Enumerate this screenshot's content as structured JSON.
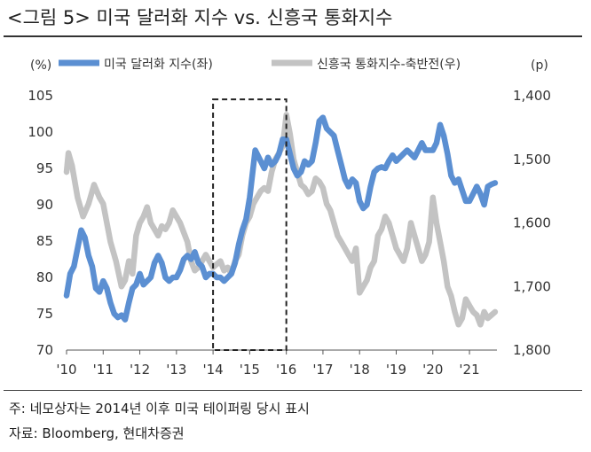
{
  "header": {
    "title": "<그림 5> 미국 달러화 지수 vs. 신흥국 통화지수"
  },
  "footer": {
    "note": "주: 네모상자는 2014년 이후 미국 테이퍼링 당시 표시",
    "source": "자료: Bloomberg, 현대차증권"
  },
  "colors": {
    "dollar_series": "#5b8fd2",
    "em_series": "#c3c3c3",
    "box": "#222222"
  },
  "chart_data": {
    "type": "line",
    "left_unit": "(%)",
    "right_unit": "(p)",
    "x_ticks": [
      "'10",
      "'11",
      "'12",
      "'13",
      "'14",
      "'15",
      "'16",
      "'17",
      "'18",
      "'19",
      "'20",
      "'21"
    ],
    "x_range": [
      2010.0,
      2021.75
    ],
    "y_left": {
      "range": [
        70,
        105
      ],
      "ticks": [
        70,
        75,
        80,
        85,
        90,
        95,
        100,
        105
      ]
    },
    "y_right": {
      "range": [
        1400,
        1800
      ],
      "inverted": true,
      "ticks": [
        "1,400",
        "1,500",
        "1,600",
        "1,700",
        "1,800"
      ]
    },
    "annotation": {
      "type": "dashed-box",
      "x_from": 2014.0,
      "x_to": 2016.0,
      "y_from": 70,
      "y_to": 104.5
    },
    "legend": {
      "placement": "top"
    },
    "series": [
      {
        "name": "미국 달러화 지수(좌)",
        "axis": "left",
        "points": [
          [
            2010.0,
            77.5
          ],
          [
            2010.1,
            80.5
          ],
          [
            2010.2,
            81.5
          ],
          [
            2010.3,
            84.0
          ],
          [
            2010.4,
            86.5
          ],
          [
            2010.5,
            85.5
          ],
          [
            2010.6,
            83.0
          ],
          [
            2010.7,
            81.5
          ],
          [
            2010.8,
            78.5
          ],
          [
            2010.9,
            78.0
          ],
          [
            2011.0,
            79.5
          ],
          [
            2011.1,
            78.5
          ],
          [
            2011.2,
            76.5
          ],
          [
            2011.3,
            75.0
          ],
          [
            2011.4,
            74.5
          ],
          [
            2011.5,
            74.8
          ],
          [
            2011.6,
            74.2
          ],
          [
            2011.7,
            76.5
          ],
          [
            2011.8,
            78.5
          ],
          [
            2011.9,
            79.0
          ],
          [
            2012.0,
            80.5
          ],
          [
            2012.1,
            79.0
          ],
          [
            2012.2,
            79.5
          ],
          [
            2012.3,
            80.0
          ],
          [
            2012.4,
            82.0
          ],
          [
            2012.5,
            83.0
          ],
          [
            2012.6,
            82.0
          ],
          [
            2012.7,
            80.0
          ],
          [
            2012.8,
            79.5
          ],
          [
            2012.9,
            80.0
          ],
          [
            2013.0,
            80.0
          ],
          [
            2013.1,
            81.0
          ],
          [
            2013.2,
            82.5
          ],
          [
            2013.3,
            83.0
          ],
          [
            2013.4,
            82.5
          ],
          [
            2013.5,
            83.5
          ],
          [
            2013.6,
            82.0
          ],
          [
            2013.7,
            81.5
          ],
          [
            2013.8,
            80.0
          ],
          [
            2013.9,
            80.5
          ],
          [
            2014.0,
            80.5
          ],
          [
            2014.1,
            80.0
          ],
          [
            2014.2,
            80.0
          ],
          [
            2014.3,
            79.5
          ],
          [
            2014.4,
            80.0
          ],
          [
            2014.5,
            80.5
          ],
          [
            2014.6,
            82.0
          ],
          [
            2014.7,
            84.5
          ],
          [
            2014.8,
            86.5
          ],
          [
            2014.9,
            88.0
          ],
          [
            2015.0,
            91.0
          ],
          [
            2015.15,
            97.5
          ],
          [
            2015.3,
            96.0
          ],
          [
            2015.4,
            95.0
          ],
          [
            2015.5,
            96.5
          ],
          [
            2015.6,
            95.5
          ],
          [
            2015.7,
            96.0
          ],
          [
            2015.8,
            97.0
          ],
          [
            2015.9,
            99.0
          ],
          [
            2016.0,
            99.0
          ],
          [
            2016.1,
            97.0
          ],
          [
            2016.2,
            95.0
          ],
          [
            2016.3,
            94.0
          ],
          [
            2016.4,
            94.5
          ],
          [
            2016.5,
            96.0
          ],
          [
            2016.6,
            95.5
          ],
          [
            2016.7,
            96.0
          ],
          [
            2016.8,
            98.5
          ],
          [
            2016.9,
            101.5
          ],
          [
            2017.0,
            102.0
          ],
          [
            2017.1,
            100.5
          ],
          [
            2017.2,
            100.0
          ],
          [
            2017.3,
            99.5
          ],
          [
            2017.4,
            97.5
          ],
          [
            2017.5,
            95.5
          ],
          [
            2017.6,
            93.5
          ],
          [
            2017.7,
            92.5
          ],
          [
            2017.8,
            93.5
          ],
          [
            2017.9,
            93.0
          ],
          [
            2018.0,
            90.5
          ],
          [
            2018.1,
            89.5
          ],
          [
            2018.2,
            90.0
          ],
          [
            2018.3,
            92.5
          ],
          [
            2018.4,
            94.5
          ],
          [
            2018.5,
            95.0
          ],
          [
            2018.6,
            95.2
          ],
          [
            2018.7,
            95.0
          ],
          [
            2018.8,
            96.0
          ],
          [
            2018.9,
            96.8
          ],
          [
            2019.0,
            96.0
          ],
          [
            2019.1,
            96.5
          ],
          [
            2019.2,
            97.0
          ],
          [
            2019.3,
            97.5
          ],
          [
            2019.4,
            97.0
          ],
          [
            2019.5,
            96.5
          ],
          [
            2019.6,
            97.5
          ],
          [
            2019.7,
            98.5
          ],
          [
            2019.8,
            97.5
          ],
          [
            2019.9,
            97.5
          ],
          [
            2020.0,
            97.5
          ],
          [
            2020.1,
            98.5
          ],
          [
            2020.2,
            101.0
          ],
          [
            2020.3,
            99.5
          ],
          [
            2020.4,
            97.0
          ],
          [
            2020.5,
            94.0
          ],
          [
            2020.6,
            93.0
          ],
          [
            2020.7,
            93.5
          ],
          [
            2020.8,
            92.0
          ],
          [
            2020.9,
            90.5
          ],
          [
            2021.0,
            90.5
          ],
          [
            2021.1,
            91.5
          ],
          [
            2021.2,
            92.5
          ],
          [
            2021.3,
            91.5
          ],
          [
            2021.4,
            90.0
          ],
          [
            2021.5,
            92.5
          ],
          [
            2021.6,
            92.8
          ],
          [
            2021.7,
            93.0
          ]
        ]
      },
      {
        "name": "신흥국 통화지수-축반전(우)",
        "axis": "right",
        "points": [
          [
            2010.0,
            1520
          ],
          [
            2010.05,
            1490
          ],
          [
            2010.15,
            1510
          ],
          [
            2010.3,
            1560
          ],
          [
            2010.45,
            1590
          ],
          [
            2010.6,
            1570
          ],
          [
            2010.75,
            1540
          ],
          [
            2010.9,
            1560
          ],
          [
            2011.0,
            1570
          ],
          [
            2011.1,
            1600
          ],
          [
            2011.2,
            1630
          ],
          [
            2011.35,
            1660
          ],
          [
            2011.5,
            1700
          ],
          [
            2011.6,
            1690
          ],
          [
            2011.7,
            1660
          ],
          [
            2011.8,
            1680
          ],
          [
            2011.9,
            1620
          ],
          [
            2012.0,
            1600
          ],
          [
            2012.1,
            1590
          ],
          [
            2012.2,
            1575
          ],
          [
            2012.3,
            1600
          ],
          [
            2012.4,
            1610
          ],
          [
            2012.5,
            1620
          ],
          [
            2012.6,
            1605
          ],
          [
            2012.7,
            1610
          ],
          [
            2012.8,
            1600
          ],
          [
            2012.9,
            1580
          ],
          [
            2013.0,
            1590
          ],
          [
            2013.1,
            1600
          ],
          [
            2013.2,
            1615
          ],
          [
            2013.3,
            1630
          ],
          [
            2013.4,
            1660
          ],
          [
            2013.5,
            1675
          ],
          [
            2013.6,
            1670
          ],
          [
            2013.7,
            1660
          ],
          [
            2013.8,
            1650
          ],
          [
            2013.9,
            1660
          ],
          [
            2014.0,
            1670
          ],
          [
            2014.1,
            1665
          ],
          [
            2014.2,
            1660
          ],
          [
            2014.3,
            1675
          ],
          [
            2014.4,
            1670
          ],
          [
            2014.5,
            1680
          ],
          [
            2014.6,
            1660
          ],
          [
            2014.7,
            1650
          ],
          [
            2014.8,
            1620
          ],
          [
            2014.9,
            1600
          ],
          [
            2015.0,
            1590
          ],
          [
            2015.1,
            1570
          ],
          [
            2015.2,
            1560
          ],
          [
            2015.3,
            1550
          ],
          [
            2015.4,
            1545
          ],
          [
            2015.5,
            1550
          ],
          [
            2015.6,
            1520
          ],
          [
            2015.7,
            1500
          ],
          [
            2015.8,
            1490
          ],
          [
            2015.9,
            1480
          ],
          [
            2016.0,
            1430
          ],
          [
            2016.1,
            1460
          ],
          [
            2016.2,
            1500
          ],
          [
            2016.3,
            1520
          ],
          [
            2016.4,
            1540
          ],
          [
            2016.5,
            1545
          ],
          [
            2016.6,
            1555
          ],
          [
            2016.7,
            1550
          ],
          [
            2016.8,
            1530
          ],
          [
            2016.9,
            1535
          ],
          [
            2017.0,
            1545
          ],
          [
            2017.1,
            1570
          ],
          [
            2017.2,
            1580
          ],
          [
            2017.3,
            1600
          ],
          [
            2017.4,
            1620
          ],
          [
            2017.5,
            1630
          ],
          [
            2017.6,
            1640
          ],
          [
            2017.7,
            1650
          ],
          [
            2017.8,
            1660
          ],
          [
            2017.9,
            1640
          ],
          [
            2018.0,
            1710
          ],
          [
            2018.1,
            1700
          ],
          [
            2018.2,
            1690
          ],
          [
            2018.3,
            1670
          ],
          [
            2018.4,
            1660
          ],
          [
            2018.5,
            1620
          ],
          [
            2018.6,
            1610
          ],
          [
            2018.7,
            1590
          ],
          [
            2018.8,
            1600
          ],
          [
            2018.9,
            1620
          ],
          [
            2019.0,
            1640
          ],
          [
            2019.1,
            1650
          ],
          [
            2019.2,
            1660
          ],
          [
            2019.3,
            1640
          ],
          [
            2019.4,
            1600
          ],
          [
            2019.5,
            1620
          ],
          [
            2019.6,
            1640
          ],
          [
            2019.7,
            1660
          ],
          [
            2019.8,
            1650
          ],
          [
            2019.9,
            1630
          ],
          [
            2020.0,
            1560
          ],
          [
            2020.1,
            1600
          ],
          [
            2020.2,
            1630
          ],
          [
            2020.3,
            1660
          ],
          [
            2020.4,
            1700
          ],
          [
            2020.5,
            1715
          ],
          [
            2020.6,
            1740
          ],
          [
            2020.7,
            1760
          ],
          [
            2020.8,
            1750
          ],
          [
            2020.9,
            1720
          ],
          [
            2021.0,
            1730
          ],
          [
            2021.1,
            1740
          ],
          [
            2021.2,
            1745
          ],
          [
            2021.3,
            1760
          ],
          [
            2021.4,
            1740
          ],
          [
            2021.5,
            1750
          ],
          [
            2021.6,
            1745
          ],
          [
            2021.7,
            1740
          ]
        ]
      }
    ]
  }
}
